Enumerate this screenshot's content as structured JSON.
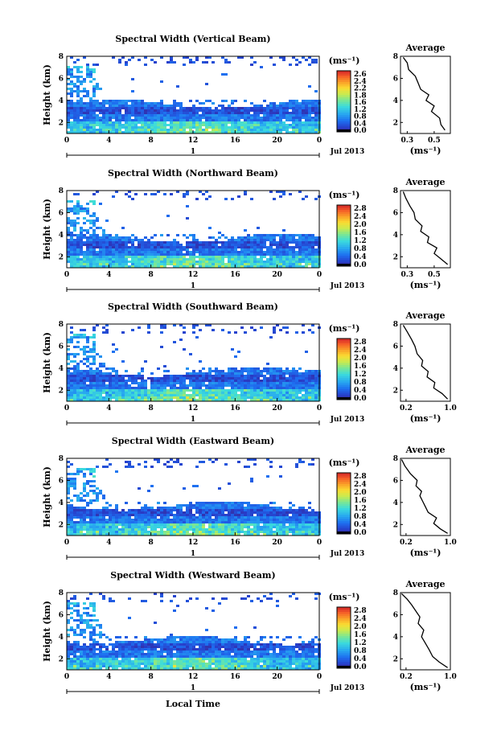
{
  "figure": {
    "xlabel": "Local Time",
    "date_label": "Jul 2013",
    "day_label": "1",
    "ylabel": "Height (km)",
    "unit_label": "(ms⁻¹)",
    "avg_title": "Average",
    "avg_xlabel": "(ms⁻¹)"
  },
  "chart_data": [
    {
      "type": "heatmap",
      "title": "Spectral Width (Vertical Beam)",
      "xlabel": "",
      "ylabel": "Height (km)",
      "x_ticks": [
        "0",
        "4",
        "8",
        "12",
        "16",
        "20",
        "0"
      ],
      "y_ticks": [
        "2",
        "4",
        "6",
        "8"
      ],
      "xlim": [
        0,
        24
      ],
      "ylim": [
        1,
        8
      ],
      "colorbar": {
        "ticks": [
          "2.6",
          "2.4",
          "2.2",
          "1.8",
          "1.6",
          "1.2",
          "0.8",
          "0.4",
          "0.0"
        ],
        "range": [
          0,
          2.8
        ]
      },
      "average": {
        "title": "Average",
        "xlabel": "(ms⁻¹)",
        "x_ticks": [
          "0.3",
          "0.5"
        ],
        "xlim": [
          0.25,
          0.62
        ],
        "profile": [
          [
            0.58,
            1.3
          ],
          [
            0.55,
            1.8
          ],
          [
            0.54,
            2.4
          ],
          [
            0.48,
            3.0
          ],
          [
            0.5,
            3.5
          ],
          [
            0.44,
            4.0
          ],
          [
            0.46,
            4.5
          ],
          [
            0.4,
            5.0
          ],
          [
            0.38,
            5.6
          ],
          [
            0.36,
            6.2
          ],
          [
            0.31,
            6.8
          ],
          [
            0.3,
            7.4
          ],
          [
            0.27,
            7.9
          ]
        ]
      },
      "echo_top_km": 4.0
    },
    {
      "type": "heatmap",
      "title": "Spectral Width (Northward Beam)",
      "xlabel": "",
      "ylabel": "Height (km)",
      "x_ticks": [
        "0",
        "4",
        "8",
        "12",
        "16",
        "20",
        "0"
      ],
      "y_ticks": [
        "2",
        "4",
        "6",
        "8"
      ],
      "xlim": [
        0,
        24
      ],
      "ylim": [
        1,
        8
      ],
      "colorbar": {
        "ticks": [
          "2.8",
          "2.4",
          "2.0",
          "1.6",
          "1.2",
          "0.8",
          "0.4",
          "0.0"
        ],
        "range": [
          0,
          2.8
        ]
      },
      "average": {
        "title": "Average",
        "xlabel": "(ms⁻¹)",
        "x_ticks": [
          "0.3",
          "0.5"
        ],
        "xlim": [
          0.25,
          0.62
        ],
        "profile": [
          [
            0.6,
            1.3
          ],
          [
            0.55,
            1.8
          ],
          [
            0.5,
            2.3
          ],
          [
            0.52,
            2.8
          ],
          [
            0.45,
            3.3
          ],
          [
            0.46,
            3.8
          ],
          [
            0.4,
            4.3
          ],
          [
            0.41,
            4.8
          ],
          [
            0.36,
            5.4
          ],
          [
            0.35,
            6.0
          ],
          [
            0.32,
            6.6
          ],
          [
            0.29,
            7.3
          ],
          [
            0.27,
            7.9
          ]
        ]
      },
      "echo_top_km": 4.0
    },
    {
      "type": "heatmap",
      "title": "Spectral Width (Southward Beam)",
      "xlabel": "",
      "ylabel": "Height (km)",
      "x_ticks": [
        "0",
        "4",
        "8",
        "12",
        "16",
        "20",
        "0"
      ],
      "y_ticks": [
        "2",
        "4",
        "6",
        "8"
      ],
      "xlim": [
        0,
        24
      ],
      "ylim": [
        1,
        8
      ],
      "colorbar": {
        "ticks": [
          "2.8",
          "2.4",
          "2.0",
          "1.6",
          "1.2",
          "0.8",
          "0.4",
          "0.0"
        ],
        "range": [
          0,
          2.8
        ]
      },
      "average": {
        "title": "Average",
        "xlabel": "(ms⁻¹)",
        "x_ticks": [
          "0.2",
          "1.0"
        ],
        "xlim": [
          0.1,
          1.0
        ],
        "profile": [
          [
            0.95,
            1.2
          ],
          [
            0.85,
            1.7
          ],
          [
            0.7,
            2.2
          ],
          [
            0.72,
            2.7
          ],
          [
            0.58,
            3.2
          ],
          [
            0.6,
            3.7
          ],
          [
            0.48,
            4.2
          ],
          [
            0.5,
            4.7
          ],
          [
            0.4,
            5.3
          ],
          [
            0.36,
            6.0
          ],
          [
            0.3,
            6.6
          ],
          [
            0.22,
            7.3
          ],
          [
            0.15,
            7.9
          ]
        ]
      },
      "echo_top_km": 4.0
    },
    {
      "type": "heatmap",
      "title": "Spectral Width (Eastward Beam)",
      "xlabel": "",
      "ylabel": "Height (km)",
      "x_ticks": [
        "0",
        "4",
        "8",
        "12",
        "16",
        "20",
        "0"
      ],
      "y_ticks": [
        "2",
        "4",
        "6",
        "8"
      ],
      "xlim": [
        0,
        24
      ],
      "ylim": [
        1,
        8
      ],
      "colorbar": {
        "ticks": [
          "2.8",
          "2.4",
          "2.0",
          "1.6",
          "1.2",
          "0.8",
          "0.4",
          "0.0"
        ],
        "range": [
          0,
          2.8
        ]
      },
      "average": {
        "title": "Average",
        "xlabel": "(ms⁻¹)",
        "x_ticks": [
          "0.2",
          "1.0"
        ],
        "xlim": [
          0.1,
          1.0
        ],
        "profile": [
          [
            0.95,
            1.2
          ],
          [
            0.82,
            1.6
          ],
          [
            0.7,
            2.1
          ],
          [
            0.75,
            2.6
          ],
          [
            0.6,
            3.1
          ],
          [
            0.55,
            3.6
          ],
          [
            0.5,
            4.1
          ],
          [
            0.45,
            4.6
          ],
          [
            0.48,
            5.0
          ],
          [
            0.38,
            5.5
          ],
          [
            0.4,
            6.0
          ],
          [
            0.28,
            6.6
          ],
          [
            0.18,
            7.3
          ],
          [
            0.12,
            7.9
          ]
        ]
      },
      "echo_top_km": 4.0
    },
    {
      "type": "heatmap",
      "title": "Spectral Width (Westward Beam)",
      "xlabel": "Local Time",
      "ylabel": "Height (km)",
      "x_ticks": [
        "0",
        "4",
        "8",
        "12",
        "16",
        "20",
        "0"
      ],
      "y_ticks": [
        "2",
        "4",
        "6",
        "8"
      ],
      "xlim": [
        0,
        24
      ],
      "ylim": [
        1,
        8
      ],
      "colorbar": {
        "ticks": [
          "2.8",
          "2.4",
          "2.0",
          "1.6",
          "1.2",
          "0.8",
          "0.4",
          "0.0"
        ],
        "range": [
          0,
          2.8
        ]
      },
      "average": {
        "title": "Average",
        "xlabel": "(ms⁻¹)",
        "x_ticks": [
          "0.2",
          "1.0"
        ],
        "xlim": [
          0.1,
          1.0
        ],
        "profile": [
          [
            0.95,
            1.2
          ],
          [
            0.8,
            1.7
          ],
          [
            0.68,
            2.2
          ],
          [
            0.62,
            2.8
          ],
          [
            0.55,
            3.4
          ],
          [
            0.48,
            4.0
          ],
          [
            0.52,
            4.6
          ],
          [
            0.42,
            5.2
          ],
          [
            0.45,
            5.8
          ],
          [
            0.38,
            6.3
          ],
          [
            0.3,
            6.9
          ],
          [
            0.22,
            7.4
          ],
          [
            0.12,
            7.9
          ]
        ]
      },
      "echo_top_km": 4.0
    }
  ]
}
